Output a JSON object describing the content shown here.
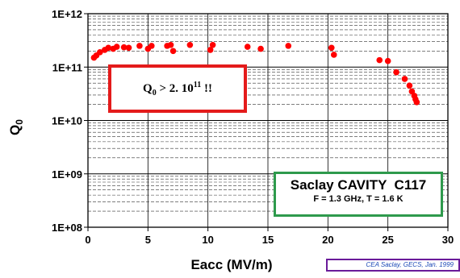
{
  "chart_data": {
    "type": "scatter",
    "title": "",
    "xlabel": "Eacc  (MV/m)",
    "ylabel": "Q0",
    "ylabel_main": "Q",
    "ylabel_sub": "0",
    "xlim": [
      0,
      30
    ],
    "ylim": [
      100000000.0,
      1000000000000.0
    ],
    "yscale": "log",
    "grid": true,
    "x_ticks": [
      0,
      5,
      10,
      15,
      20,
      25,
      30
    ],
    "x_tick_labels": [
      "0",
      "5",
      "10",
      "15",
      "20",
      "25",
      "30"
    ],
    "y_ticks": [
      100000000.0,
      1000000000.0,
      10000000000.0,
      100000000000.0,
      1000000000000.0
    ],
    "y_tick_labels": [
      "1E+08",
      "1E+09",
      "1E+10",
      "1E+11",
      "1E+12"
    ],
    "marker_color": "#ff0000",
    "series": [
      {
        "points": [
          [
            0.5,
            150000000000.0
          ],
          [
            0.7,
            165000000000.0
          ],
          [
            1.0,
            190000000000.0
          ],
          [
            1.4,
            210000000000.0
          ],
          [
            1.7,
            230000000000.0
          ],
          [
            2.1,
            220000000000.0
          ],
          [
            2.4,
            240000000000.0
          ],
          [
            3.0,
            235000000000.0
          ],
          [
            3.4,
            230000000000.0
          ],
          [
            4.3,
            250000000000.0
          ],
          [
            5.0,
            220000000000.0
          ],
          [
            5.3,
            250000000000.0
          ],
          [
            6.6,
            250000000000.0
          ],
          [
            6.9,
            260000000000.0
          ],
          [
            7.1,
            200000000000.0
          ],
          [
            8.5,
            260000000000.0
          ],
          [
            10.2,
            210000000000.0
          ],
          [
            10.4,
            260000000000.0
          ],
          [
            13.3,
            240000000000.0
          ],
          [
            14.4,
            220000000000.0
          ],
          [
            16.7,
            250000000000.0
          ],
          [
            20.3,
            230000000000.0
          ],
          [
            20.5,
            170000000000.0
          ],
          [
            24.3,
            135000000000.0
          ],
          [
            25.0,
            130000000000.0
          ],
          [
            25.7,
            80000000000.0
          ],
          [
            26.4,
            60000000000.0
          ],
          [
            26.8,
            45000000000.0
          ],
          [
            27.0,
            35000000000.0
          ],
          [
            27.2,
            29000000000.0
          ],
          [
            27.3,
            25000000000.0
          ],
          [
            27.4,
            22000000000.0
          ]
        ]
      }
    ]
  },
  "annotation": {
    "q_main": "Q",
    "q_sub": "0",
    "q_rest": " > 2. 10",
    "q_sup": "11",
    "q_tail": " !!"
  },
  "cavity_box": {
    "title": "Saclay CAVITY  C117",
    "subtitle": "F = 1.3 GHz, T = 1.6 K"
  },
  "credit": "CEA Saclay, GECS, Jan. 1999",
  "colors": {
    "points": "#ff0000",
    "annotation_border": "#e41b1b",
    "cavity_border": "#2e9a4c",
    "credit_border": "#6a1b9a",
    "credit_text": "#1a47b5"
  }
}
